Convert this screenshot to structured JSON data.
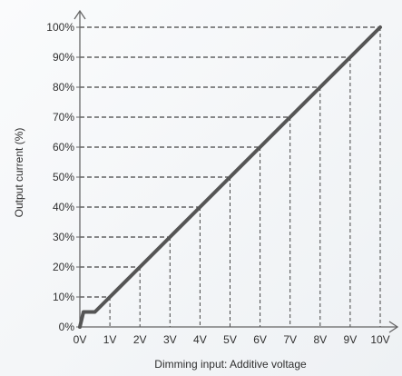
{
  "chart_data": {
    "type": "line",
    "title": "",
    "xlabel": "Dimming input: Additive voltage",
    "ylabel": "Output current (%)",
    "x_ticks": [
      "0V",
      "1V",
      "2V",
      "3V",
      "4V",
      "5V",
      "6V",
      "7V",
      "8V",
      "9V",
      "10V"
    ],
    "y_ticks": [
      "0%",
      "10%",
      "20%",
      "30%",
      "40%",
      "50%",
      "60%",
      "70%",
      "80%",
      "90%",
      "100%"
    ],
    "xlim": [
      0,
      10
    ],
    "ylim": [
      0,
      100
    ],
    "grid": "dashed guides from each axis tick to the line",
    "series": [
      {
        "color": "#555555",
        "points": [
          [
            0,
            0
          ],
          [
            0.12,
            5
          ],
          [
            0.5,
            5
          ],
          [
            1,
            10
          ],
          [
            2,
            20
          ],
          [
            3,
            30
          ],
          [
            4,
            40
          ],
          [
            5,
            50
          ],
          [
            6,
            60
          ],
          [
            7,
            70
          ],
          [
            8,
            80
          ],
          [
            9,
            90
          ],
          [
            10,
            100
          ]
        ]
      }
    ],
    "axis_color": "#666666",
    "guide_color": "#444444"
  }
}
